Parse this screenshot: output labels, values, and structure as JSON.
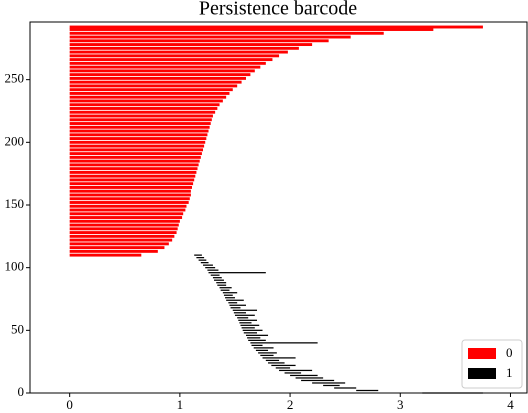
{
  "chart_data": {
    "type": "barcode",
    "title": "Persistence barcode",
    "xlim": [
      -0.36,
      4.15
    ],
    "ylim": [
      0,
      296
    ],
    "xticks": [
      0,
      1,
      2,
      3,
      4
    ],
    "yticks": [
      0,
      50,
      100,
      150,
      200,
      250
    ],
    "legend": "lower right",
    "grid": false,
    "series": [
      {
        "name": "0",
        "color": "#ff0000",
        "y": [
          110,
          113,
          116,
          119,
          122,
          125,
          128,
          131,
          134,
          137,
          140,
          143,
          146,
          149,
          152,
          155,
          158,
          161,
          164,
          167,
          170,
          173,
          176,
          179,
          182,
          185,
          188,
          191,
          194,
          197,
          200,
          203,
          206,
          209,
          212,
          215,
          218,
          221,
          224,
          227,
          230,
          233,
          236,
          239,
          242,
          245,
          248,
          251,
          254,
          257,
          260,
          263,
          266,
          269,
          272,
          275,
          278,
          281,
          284,
          287,
          290,
          292
        ],
        "births": [
          0,
          0,
          0,
          0,
          0,
          0,
          0,
          0,
          0,
          0,
          0,
          0,
          0,
          0,
          0,
          0,
          0,
          0,
          0,
          0,
          0,
          0,
          0,
          0,
          0,
          0,
          0,
          0,
          0,
          0,
          0,
          0,
          0,
          0,
          0,
          0,
          0,
          0,
          0,
          0,
          0,
          0,
          0,
          0,
          0,
          0,
          0,
          0,
          0,
          0,
          0,
          0,
          0,
          0,
          0,
          0,
          0,
          0,
          0,
          0,
          0,
          0
        ],
        "deaths": [
          0.65,
          0.8,
          0.86,
          0.9,
          0.93,
          0.95,
          0.97,
          0.98,
          0.99,
          1.0,
          1.02,
          1.03,
          1.05,
          1.06,
          1.08,
          1.09,
          1.1,
          1.1,
          1.11,
          1.12,
          1.13,
          1.14,
          1.15,
          1.16,
          1.17,
          1.18,
          1.19,
          1.2,
          1.21,
          1.22,
          1.23,
          1.24,
          1.25,
          1.26,
          1.27,
          1.28,
          1.29,
          1.3,
          1.32,
          1.34,
          1.36,
          1.39,
          1.42,
          1.45,
          1.48,
          1.52,
          1.56,
          1.6,
          1.64,
          1.68,
          1.73,
          1.78,
          1.84,
          1.9,
          1.98,
          2.08,
          2.2,
          2.35,
          2.55,
          2.85,
          3.3,
          3.75
        ]
      },
      {
        "name": "1",
        "color": "#000000",
        "y": [
          0,
          2,
          4,
          6,
          8,
          10,
          12,
          14,
          16,
          18,
          20,
          22,
          24,
          26,
          28,
          30,
          32,
          34,
          36,
          38,
          40,
          42,
          44,
          46,
          48,
          50,
          52,
          54,
          56,
          58,
          60,
          62,
          64,
          66,
          68,
          70,
          72,
          74,
          76,
          78,
          80,
          82,
          84,
          86,
          88,
          90,
          92,
          94,
          96,
          98,
          100,
          102,
          104,
          106,
          108,
          110
        ],
        "births": [
          3.2,
          2.6,
          2.4,
          2.3,
          2.2,
          2.1,
          2.05,
          2.0,
          1.95,
          1.9,
          1.87,
          1.83,
          1.8,
          1.78,
          1.75,
          1.73,
          1.71,
          1.69,
          1.67,
          1.65,
          1.64,
          1.62,
          1.61,
          1.6,
          1.58,
          1.57,
          1.56,
          1.55,
          1.54,
          1.53,
          1.52,
          1.5,
          1.49,
          1.48,
          1.46,
          1.45,
          1.44,
          1.42,
          1.41,
          1.4,
          1.39,
          1.37,
          1.36,
          1.34,
          1.33,
          1.31,
          1.3,
          1.28,
          1.26,
          1.25,
          1.23,
          1.21,
          1.19,
          1.17,
          1.15,
          1.13
        ],
        "deaths": [
          3.75,
          2.8,
          2.6,
          2.45,
          2.5,
          2.4,
          2.3,
          2.25,
          2.1,
          2.2,
          2.0,
          2.05,
          1.95,
          1.9,
          2.05,
          1.85,
          1.88,
          1.8,
          1.85,
          1.75,
          2.25,
          1.78,
          1.73,
          1.8,
          1.7,
          1.75,
          1.68,
          1.72,
          1.65,
          1.7,
          1.62,
          1.68,
          1.6,
          1.7,
          1.55,
          1.6,
          1.52,
          1.58,
          1.5,
          1.48,
          1.52,
          1.45,
          1.47,
          1.42,
          1.42,
          1.4,
          1.38,
          1.36,
          1.78,
          1.35,
          1.32,
          1.3,
          1.26,
          1.24,
          1.22,
          1.2
        ]
      }
    ]
  }
}
